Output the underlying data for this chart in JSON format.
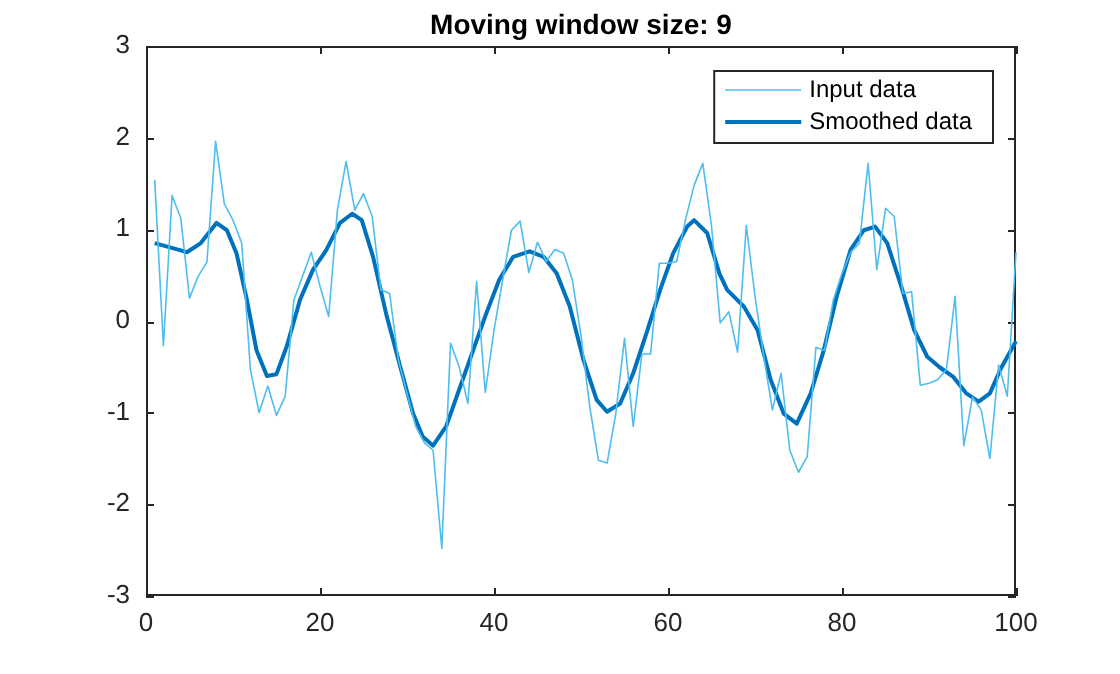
{
  "chart_data": {
    "type": "line",
    "title": "Moving window size: 9",
    "xlim": [
      0,
      100
    ],
    "xticks": [
      0,
      20,
      40,
      60,
      80,
      100
    ],
    "ylim": [
      -3,
      3
    ],
    "yticks": [
      -3,
      -2,
      -1,
      0,
      1,
      2,
      3
    ],
    "grid": false,
    "legend": "top right",
    "marker": "none",
    "line_style": "solid",
    "series": [
      {
        "name": "Input data",
        "color": "#4dbeee",
        "x": [
          1,
          2,
          3,
          4,
          5,
          6,
          7,
          8,
          9,
          10,
          11,
          12,
          13,
          14,
          15,
          16,
          17,
          18,
          19,
          20,
          21,
          22,
          23,
          24,
          25,
          26,
          27,
          28,
          29,
          30,
          31,
          32,
          33,
          34,
          35,
          36,
          37,
          38,
          39,
          40,
          41,
          42,
          43,
          44,
          45,
          46,
          47,
          48,
          49,
          50,
          51,
          52,
          53,
          54,
          55,
          56,
          57,
          58,
          59,
          60,
          61,
          62,
          63,
          64,
          65,
          66,
          67,
          68,
          69,
          70,
          71,
          72,
          73,
          74,
          75,
          76,
          77,
          78,
          79,
          80,
          81,
          82,
          83,
          84,
          85,
          86,
          87,
          88,
          89,
          90,
          91,
          92,
          93,
          94,
          95,
          96,
          97,
          98,
          99,
          100
        ],
        "values": [
          1.54,
          -0.27,
          1.37,
          1.12,
          0.25,
          0.49,
          0.64,
          1.96,
          1.28,
          1.1,
          0.85,
          -0.53,
          -1.0,
          -0.71,
          -1.03,
          -0.82,
          0.23,
          0.49,
          0.75,
          0.38,
          0.05,
          1.21,
          1.74,
          1.21,
          1.39,
          1.14,
          0.34,
          0.3,
          -0.42,
          -0.79,
          -1.15,
          -1.33,
          -1.41,
          -2.48,
          -0.24,
          -0.5,
          -0.9,
          0.43,
          -0.78,
          -0.1,
          0.45,
          0.99,
          1.09,
          0.53,
          0.86,
          0.65,
          0.78,
          0.74,
          0.45,
          -0.16,
          -0.93,
          -1.52,
          -1.55,
          -1.01,
          -0.19,
          -1.15,
          -0.36,
          -0.36,
          0.63,
          0.63,
          0.65,
          1.1,
          1.48,
          1.72,
          1.04,
          -0.02,
          0.1,
          -0.34,
          1.04,
          0.27,
          -0.38,
          -0.97,
          -0.57,
          -1.41,
          -1.65,
          -1.48,
          -0.29,
          -0.32,
          0.23,
          0.52,
          0.75,
          0.85,
          1.72,
          0.56,
          1.23,
          1.14,
          0.3,
          0.32,
          -0.7,
          -0.68,
          -0.64,
          -0.53,
          0.27,
          -1.36,
          -0.83,
          -0.97,
          -1.5,
          -0.48,
          -0.82,
          0.75
        ]
      },
      {
        "name": "Smoothed data",
        "color": "#0072bd",
        "x": [
          1,
          4,
          4.7,
          6.3,
          8.1,
          9.3,
          10.4,
          11.6,
          12.7,
          13.9,
          15,
          16.2,
          17.7,
          19.2,
          20.7,
          22.3,
          23.7,
          24.8,
          26.1,
          27.6,
          29.2,
          30.7,
          31.8,
          33,
          34.5,
          36.1,
          37.6,
          39.1,
          40.6,
          42.2,
          44.1,
          45.7,
          47.2,
          48.7,
          50.3,
          51.8,
          53,
          54.5,
          56,
          57.5,
          59.1,
          60.6,
          62.2,
          63,
          64.5,
          65.9,
          66.8,
          68.7,
          70.3,
          71.8,
          73.3,
          74.8,
          76.4,
          77.9,
          79.4,
          81,
          82.5,
          83.8,
          85.2,
          86.8,
          88.3,
          89.8,
          91.3,
          92.8,
          94.3,
          95.7,
          97,
          98.2,
          99.7,
          100
        ],
        "values": [
          0.85,
          0.77,
          0.75,
          0.85,
          1.07,
          0.99,
          0.74,
          0.23,
          -0.32,
          -0.6,
          -0.58,
          -0.27,
          0.23,
          0.56,
          0.77,
          1.07,
          1.17,
          1.1,
          0.7,
          0.08,
          -0.49,
          -1.01,
          -1.26,
          -1.36,
          -1.15,
          -0.72,
          -0.32,
          0.08,
          0.45,
          0.7,
          0.76,
          0.7,
          0.52,
          0.16,
          -0.43,
          -0.86,
          -0.99,
          -0.9,
          -0.57,
          -0.14,
          0.34,
          0.74,
          1.03,
          1.1,
          0.96,
          0.52,
          0.34,
          0.16,
          -0.1,
          -0.64,
          -1.01,
          -1.12,
          -0.79,
          -0.32,
          0.27,
          0.78,
          0.99,
          1.03,
          0.85,
          0.38,
          -0.1,
          -0.39,
          -0.51,
          -0.61,
          -0.79,
          -0.88,
          -0.79,
          -0.53,
          -0.27,
          -0.22
        ]
      }
    ]
  }
}
